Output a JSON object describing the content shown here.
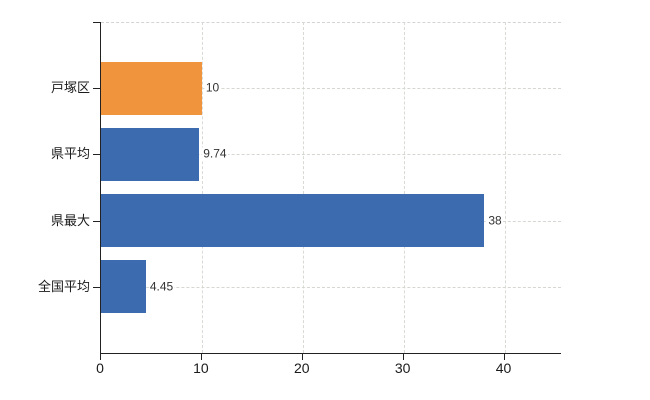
{
  "chart_data": {
    "type": "bar",
    "orientation": "horizontal",
    "title": "",
    "xlabel": "",
    "ylabel": "",
    "categories": [
      "戸塚区",
      "県平均",
      "県最大",
      "全国平均"
    ],
    "values": [
      10,
      9.74,
      38,
      4.45
    ],
    "value_labels": [
      "10",
      "9.74",
      "38",
      "4.45"
    ],
    "x_ticks": [
      0,
      10,
      20,
      30,
      40
    ],
    "x_tick_labels": [
      "0",
      "10",
      "20",
      "30",
      "40"
    ],
    "xlim": [
      0,
      45.6
    ],
    "grid": true,
    "legend": false,
    "highlight_category": "戸塚区"
  },
  "colors": {
    "highlight_bar": "#f0953d",
    "default_bar": "#3d6baf",
    "gridline": "#d6dad2",
    "axis": "#222222",
    "text": "#1a1a1a"
  }
}
